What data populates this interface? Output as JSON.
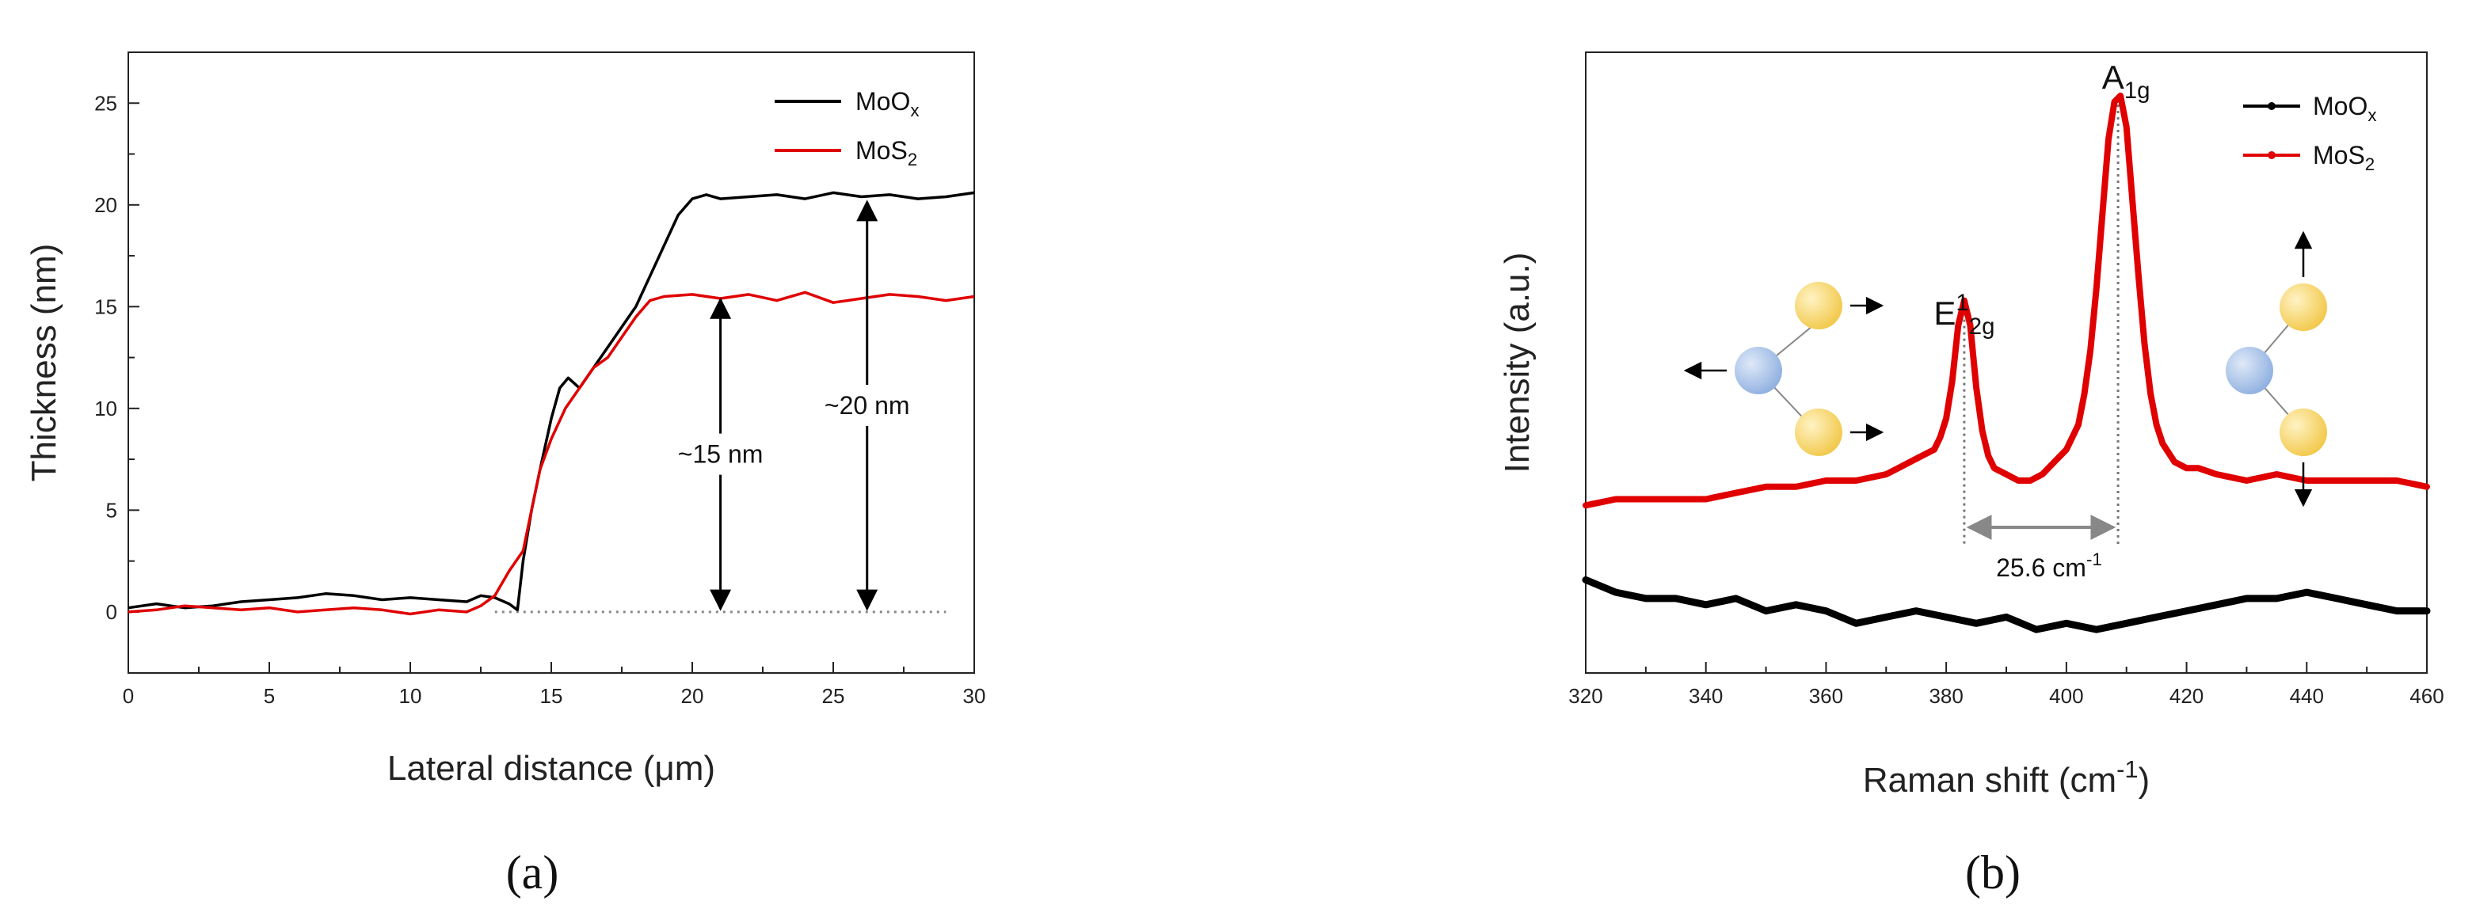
{
  "chart_data": [
    {
      "type": "line",
      "panel_label": "(a)",
      "xlabel": "Lateral distance (μm)",
      "ylabel": "Thickness (nm)",
      "xlim": [
        0,
        30
      ],
      "ylim": [
        -3,
        27.5
      ],
      "xticks": [
        0,
        5,
        10,
        15,
        20,
        25,
        30
      ],
      "yticks": [
        0,
        5,
        10,
        15,
        20,
        25
      ],
      "grid": false,
      "legend": "top-right",
      "legend_entries": [
        {
          "base": "MoO",
          "sub": "x"
        },
        {
          "base": "MoS",
          "sub": "2"
        }
      ],
      "series": [
        {
          "name": "MoOx",
          "color": "#000000",
          "x": [
            0,
            1,
            2,
            3,
            4,
            5,
            6,
            7,
            8,
            9,
            10,
            11,
            12,
            12.5,
            13,
            13.5,
            13.8,
            14,
            14.3,
            14.6,
            15,
            15.3,
            15.6,
            16,
            16.5,
            17,
            17.5,
            18,
            18.5,
            19,
            19.5,
            20,
            20.5,
            21,
            22,
            23,
            24,
            25,
            26,
            27,
            28,
            29,
            30
          ],
          "y": [
            0.2,
            0.4,
            0.2,
            0.3,
            0.5,
            0.6,
            0.7,
            0.9,
            0.8,
            0.6,
            0.7,
            0.6,
            0.5,
            0.8,
            0.7,
            0.4,
            0.1,
            2.5,
            5.0,
            7.0,
            9.5,
            11.0,
            11.5,
            11.0,
            12.0,
            13.0,
            14.0,
            15.0,
            16.5,
            18.0,
            19.5,
            20.3,
            20.5,
            20.3,
            20.4,
            20.5,
            20.3,
            20.6,
            20.4,
            20.5,
            20.3,
            20.4,
            20.6
          ]
        },
        {
          "name": "MoS2",
          "color": "#e00000",
          "x": [
            0,
            1,
            2,
            3,
            4,
            5,
            6,
            7,
            8,
            9,
            10,
            11,
            12,
            12.5,
            13,
            13.5,
            14,
            14.3,
            14.6,
            15,
            15.5,
            16,
            16.5,
            17,
            17.5,
            18,
            18.5,
            19,
            20,
            21,
            22,
            23,
            24,
            25,
            26,
            27,
            28,
            29,
            30
          ],
          "y": [
            0.0,
            0.1,
            0.3,
            0.2,
            0.1,
            0.2,
            0.0,
            0.1,
            0.2,
            0.1,
            -0.1,
            0.1,
            0.0,
            0.3,
            0.8,
            2.0,
            3.0,
            5.0,
            7.0,
            8.5,
            10.0,
            11.0,
            12.0,
            12.5,
            13.5,
            14.5,
            15.3,
            15.5,
            15.6,
            15.4,
            15.6,
            15.3,
            15.7,
            15.2,
            15.4,
            15.6,
            15.5,
            15.3,
            15.5
          ]
        }
      ],
      "baseline": {
        "y": 0,
        "from_x": 13,
        "to_x": 29
      },
      "annotations": [
        {
          "text": "~15 nm",
          "arrow_x": 21,
          "from_y": 0,
          "to_y": 15.5
        },
        {
          "text": "~20 nm",
          "arrow_x": 26.2,
          "from_y": 0,
          "to_y": 20.3
        }
      ]
    },
    {
      "type": "line",
      "panel_label": "(b)",
      "xlabel_base": "Raman shift (cm",
      "xlabel_sup": "-1",
      "xlabel_close": ")",
      "ylabel": "Intensity (a.u.)",
      "xlim": [
        320,
        460
      ],
      "ylim": [
        0,
        100
      ],
      "xticks": [
        320,
        340,
        360,
        380,
        400,
        420,
        440,
        460
      ],
      "grid": false,
      "legend": "top-right",
      "legend_entries": [
        {
          "base": "MoO",
          "sub": "x"
        },
        {
          "base": "MoS",
          "sub": "2"
        }
      ],
      "series": [
        {
          "name": "MoOx",
          "color": "#000000",
          "x": [
            320,
            325,
            330,
            335,
            340,
            345,
            350,
            355,
            360,
            365,
            370,
            375,
            380,
            385,
            390,
            395,
            400,
            405,
            410,
            415,
            420,
            425,
            430,
            435,
            440,
            445,
            450,
            455,
            460
          ],
          "y": [
            15,
            13,
            12,
            12,
            11,
            12,
            10,
            11,
            10,
            8,
            9,
            10,
            9,
            8,
            9,
            7,
            8,
            7,
            8,
            9,
            10,
            11,
            12,
            12,
            13,
            12,
            11,
            10,
            10
          ]
        },
        {
          "name": "MoS2",
          "color": "#e00000",
          "x": [
            320,
            325,
            330,
            335,
            340,
            345,
            350,
            355,
            360,
            365,
            370,
            372,
            374,
            376,
            378,
            379,
            380,
            381,
            382,
            383,
            384,
            385,
            386,
            387,
            388,
            390,
            392,
            394,
            396,
            398,
            400,
            402,
            403,
            404,
            405,
            406,
            407,
            408,
            409,
            410,
            411,
            412,
            413,
            414,
            415,
            416,
            418,
            420,
            422,
            425,
            430,
            435,
            440,
            445,
            450,
            455,
            460
          ],
          "y": [
            27,
            28,
            28,
            28,
            28,
            29,
            30,
            30,
            31,
            31,
            32,
            33,
            34,
            35,
            36,
            38,
            41,
            47,
            56,
            60,
            56,
            46,
            39,
            35,
            33,
            32,
            31,
            31,
            32,
            34,
            36,
            40,
            45,
            52,
            62,
            74,
            86,
            92,
            93,
            88,
            76,
            64,
            53,
            45,
            40,
            37,
            34,
            33,
            33,
            32,
            31,
            32,
            31,
            31,
            31,
            31,
            30
          ]
        }
      ],
      "peak_labels": [
        {
          "base": "E",
          "sup": "1",
          "sub": "2g",
          "x": 383
        },
        {
          "base": "A",
          "sub": "1g",
          "x": 408.6
        }
      ],
      "separation_label": "25.6 cm",
      "separation_sup": "-1",
      "separation_from": 383,
      "separation_to": 408.6
    }
  ]
}
